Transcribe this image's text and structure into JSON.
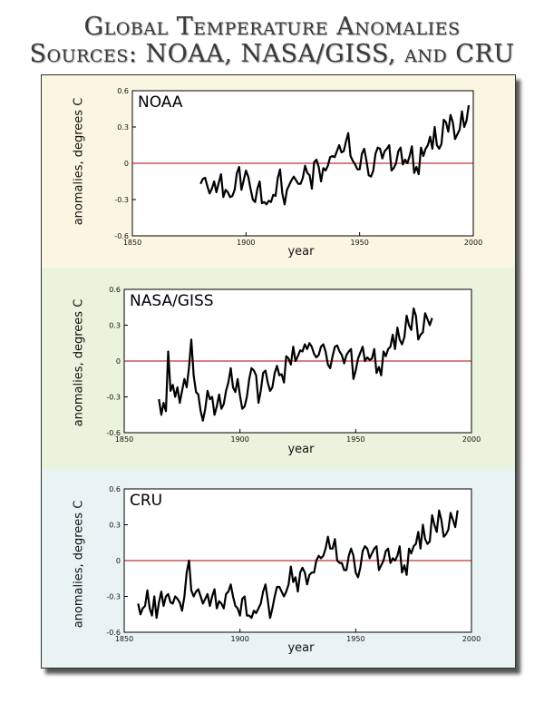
{
  "title": {
    "line1": "Global Temperature Anomalies",
    "line2": "Sources: NOAA, NASA/GISS, and CRU"
  },
  "colors": {
    "panel_backgrounds": [
      "#fbf6e2",
      "#eaf3dc",
      "#e9f3f3"
    ],
    "zero_line": "#b00000",
    "series_line": "#000000"
  },
  "chart_data": [
    {
      "type": "line",
      "title": "NOAA",
      "xlabel": "year",
      "ylabel": "anomalies, degrees C",
      "xlim": [
        1850,
        2000
      ],
      "ylim": [
        -0.6,
        0.6
      ],
      "xticks": [
        1850,
        1900,
        1950,
        2000
      ],
      "yticks": [
        -0.6,
        -0.3,
        0,
        0.3,
        0.6
      ],
      "ytick_labels": [
        "-0.6",
        "-0.3",
        "0",
        "0.3",
        "0.6"
      ],
      "zero_line": true,
      "series": [
        {
          "x_start": 1880,
          "x_step": 1,
          "values": [
            -0.17,
            -0.13,
            -0.12,
            -0.19,
            -0.25,
            -0.21,
            -0.15,
            -0.24,
            -0.16,
            -0.09,
            -0.28,
            -0.22,
            -0.24,
            -0.28,
            -0.27,
            -0.22,
            -0.08,
            -0.03,
            -0.22,
            -0.14,
            -0.06,
            -0.11,
            -0.21,
            -0.3,
            -0.32,
            -0.21,
            -0.15,
            -0.33,
            -0.32,
            -0.34,
            -0.31,
            -0.32,
            -0.26,
            -0.27,
            -0.12,
            -0.05,
            -0.25,
            -0.34,
            -0.22,
            -0.18,
            -0.14,
            -0.11,
            -0.14,
            -0.17,
            -0.17,
            -0.12,
            -0.02,
            -0.08,
            -0.1,
            -0.21,
            0.01,
            0.03,
            -0.03,
            -0.15,
            -0.04,
            -0.06,
            -0.02,
            0.05,
            0.06,
            0.05,
            0.1,
            0.15,
            0.09,
            0.1,
            0.18,
            0.25,
            0.06,
            0.02,
            -0.01,
            -0.05,
            -0.05,
            0.08,
            0.12,
            0.02,
            -0.1,
            -0.11,
            -0.06,
            0.08,
            0.13,
            0.12,
            0.04,
            0.1,
            0.12,
            0.15,
            -0.06,
            -0.04,
            0.0,
            0.1,
            0.13,
            -0.01,
            0.03,
            0.0,
            0.06,
            0.14,
            -0.08,
            -0.03,
            -0.09,
            0.13,
            0.06,
            0.12,
            0.15,
            0.22,
            0.12,
            0.3,
            0.15,
            0.12,
            0.16,
            0.36,
            0.34,
            0.26,
            0.4,
            0.34,
            0.2,
            0.24,
            0.28,
            0.43,
            0.3,
            0.35,
            0.48
          ]
        }
      ]
    },
    {
      "type": "line",
      "title": "NASA/GISS",
      "xlabel": "year",
      "ylabel": "anomalies, degrees C",
      "xlim": [
        1850,
        2000
      ],
      "ylim": [
        -0.6,
        0.6
      ],
      "xticks": [
        1850,
        1900,
        1950,
        2000
      ],
      "yticks": [
        -0.6,
        -0.3,
        0,
        0.3,
        0.6
      ],
      "ytick_labels": [
        "-0.6",
        "-0.3",
        "0",
        "0.3",
        "0.6"
      ],
      "zero_line": true,
      "series": [
        {
          "x_start": 1865,
          "x_step": 1,
          "values": [
            -0.32,
            -0.45,
            -0.35,
            -0.42,
            0.08,
            -0.25,
            -0.2,
            -0.3,
            -0.22,
            -0.35,
            -0.25,
            -0.15,
            -0.22,
            -0.05,
            0.18,
            -0.12,
            -0.26,
            -0.28,
            -0.42,
            -0.5,
            -0.4,
            -0.25,
            -0.32,
            -0.3,
            -0.45,
            -0.38,
            -0.28,
            -0.4,
            -0.36,
            -0.25,
            -0.18,
            -0.06,
            -0.22,
            -0.26,
            -0.15,
            -0.29,
            -0.4,
            -0.38,
            -0.3,
            -0.15,
            -0.06,
            -0.08,
            -0.12,
            -0.35,
            -0.25,
            -0.1,
            -0.08,
            -0.18,
            -0.25,
            -0.22,
            -0.1,
            -0.04,
            -0.12,
            -0.11,
            -0.18,
            0.04,
            0.02,
            -0.03,
            0.12,
            0.0,
            0.04,
            0.09,
            0.08,
            0.14,
            0.1,
            0.15,
            0.12,
            0.06,
            0.03,
            0.05,
            0.12,
            0.14,
            0.08,
            -0.03,
            -0.06,
            0.04,
            0.12,
            0.13,
            0.08,
            0.05,
            -0.02,
            0.05,
            0.08,
            0.1,
            -0.15,
            -0.08,
            0.02,
            0.07,
            0.12,
            0.0,
            0.03,
            0.01,
            0.02,
            0.1,
            -0.1,
            -0.05,
            -0.12,
            0.08,
            0.04,
            0.1,
            0.12,
            0.22,
            0.1,
            0.28,
            0.18,
            0.14,
            0.2,
            0.38,
            0.3,
            0.26,
            0.44,
            0.38,
            0.18,
            0.22,
            0.24,
            0.4,
            0.35,
            0.3,
            0.36
          ]
        }
      ]
    },
    {
      "type": "line",
      "title": "CRU",
      "xlabel": "year",
      "ylabel": "anomalies, degrees C",
      "xlim": [
        1850,
        2000
      ],
      "ylim": [
        -0.6,
        0.6
      ],
      "xticks": [
        1850,
        1900,
        1950,
        2000
      ],
      "yticks": [
        -0.6,
        -0.3,
        0,
        0.3,
        0.6
      ],
      "ytick_labels": [
        "-0.6",
        "-0.3",
        "0",
        "0.3",
        "0.6"
      ],
      "zero_line": true,
      "series": [
        {
          "x_start": 1856,
          "x_step": 1,
          "values": [
            -0.36,
            -0.45,
            -0.4,
            -0.38,
            -0.25,
            -0.4,
            -0.46,
            -0.3,
            -0.48,
            -0.35,
            -0.26,
            -0.38,
            -0.3,
            -0.28,
            -0.35,
            -0.36,
            -0.3,
            -0.32,
            -0.35,
            -0.42,
            -0.3,
            -0.1,
            0.0,
            -0.25,
            -0.3,
            -0.26,
            -0.24,
            -0.3,
            -0.36,
            -0.32,
            -0.28,
            -0.38,
            -0.3,
            -0.24,
            -0.4,
            -0.34,
            -0.36,
            -0.4,
            -0.28,
            -0.26,
            -0.2,
            -0.3,
            -0.38,
            -0.4,
            -0.46,
            -0.32,
            -0.3,
            -0.46,
            -0.46,
            -0.48,
            -0.42,
            -0.44,
            -0.4,
            -0.36,
            -0.26,
            -0.2,
            -0.33,
            -0.48,
            -0.4,
            -0.3,
            -0.22,
            -0.22,
            -0.26,
            -0.3,
            -0.26,
            -0.2,
            -0.05,
            -0.18,
            -0.14,
            -0.26,
            -0.1,
            -0.06,
            -0.1,
            -0.2,
            -0.12,
            -0.1,
            -0.1,
            0.0,
            0.04,
            0.02,
            0.04,
            0.1,
            0.2,
            0.1,
            0.1,
            0.18,
            0.0,
            -0.02,
            -0.02,
            -0.08,
            -0.08,
            0.04,
            0.1,
            0.04,
            -0.1,
            -0.14,
            -0.06,
            0.08,
            0.12,
            0.1,
            0.02,
            0.06,
            0.1,
            0.12,
            -0.08,
            -0.04,
            0.0,
            0.08,
            0.1,
            -0.02,
            0.02,
            0.0,
            0.04,
            0.12,
            -0.1,
            -0.04,
            -0.12,
            0.1,
            0.06,
            0.12,
            0.14,
            0.24,
            0.1,
            0.3,
            0.18,
            0.14,
            0.16,
            0.38,
            0.3,
            0.24,
            0.42,
            0.34,
            0.2,
            0.22,
            0.26,
            0.4,
            0.34,
            0.28,
            0.42
          ]
        }
      ]
    }
  ]
}
